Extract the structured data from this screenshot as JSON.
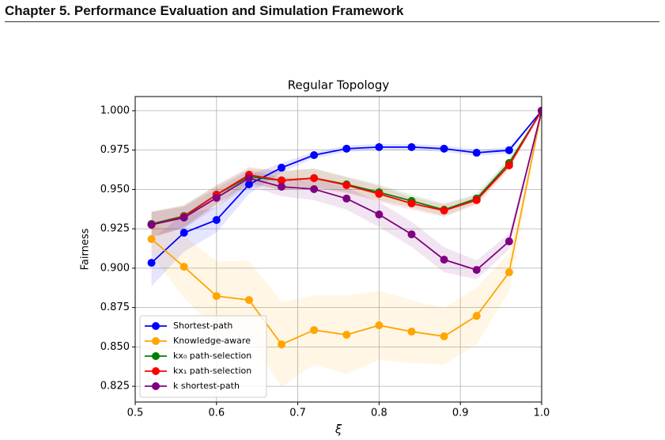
{
  "header": {
    "title": "Chapter 5.  Performance Evaluation and Simulation Framework"
  },
  "chart_data": {
    "type": "line",
    "title": "Regular Topology",
    "x_label": "ξ",
    "y_label": "Fairness",
    "x": [
      0.52,
      0.56,
      0.6,
      0.64,
      0.68,
      0.72,
      0.76,
      0.8,
      0.84,
      0.88,
      0.92,
      0.96,
      1.0
    ],
    "xlim": [
      0.5,
      1.0
    ],
    "xticks": [
      0.5,
      0.6,
      0.7,
      0.8,
      0.9,
      {
        "value": 1.0,
        "label": "1.0"
      }
    ],
    "ylim": [
      0.815,
      1.009
    ],
    "yticks": [
      0.825,
      {
        "value": 0.85,
        "label": "0.850"
      },
      0.875,
      {
        "value": 0.9,
        "label": "0.900"
      },
      0.925,
      {
        "value": 0.95,
        "label": "0.950"
      },
      0.975,
      {
        "value": 1.0,
        "label": "1.000"
      }
    ],
    "grid": true,
    "legend": "lower left",
    "series": [
      {
        "name": "Shortest-path",
        "color": "#0000ff",
        "values": [
          0.9034,
          0.9225,
          0.9306,
          0.9532,
          0.9638,
          0.9718,
          0.9759,
          0.9769,
          0.9769,
          0.9759,
          0.9733,
          0.9749,
          1.0
        ],
        "error": [
          0.015,
          0.012,
          0.008,
          0.006,
          0.003,
          0.002,
          0.002,
          0.002,
          0.002,
          0.002,
          0.002,
          0.002,
          0
        ]
      },
      {
        "name": "Knowledge-aware",
        "color": "#ffa500",
        "values": [
          0.9185,
          0.9009,
          0.8823,
          0.8798,
          0.8516,
          0.8607,
          0.8577,
          0.8637,
          0.8597,
          0.8567,
          0.8697,
          0.8974,
          1.0
        ],
        "error": [
          0.01,
          0.02,
          0.022,
          0.025,
          0.027,
          0.022,
          0.025,
          0.022,
          0.02,
          0.018,
          0.018,
          0.012,
          0
        ]
      },
      {
        "name": "kx₀ path-selection",
        "color": "#008000",
        "values": [
          0.9281,
          0.9331,
          0.9467,
          0.9582,
          0.9557,
          0.9572,
          0.9532,
          0.9482,
          0.9427,
          0.9371,
          0.9442,
          0.9668,
          1.0
        ],
        "error": [
          0.008,
          0.007,
          0.006,
          0.005,
          0.006,
          0.006,
          0.005,
          0.005,
          0.004,
          0.004,
          0.003,
          0.003,
          0
        ]
      },
      {
        "name": "kx₁ path-selection",
        "color": "#ff0000",
        "values": [
          0.9276,
          0.9326,
          0.9467,
          0.9593,
          0.9557,
          0.9572,
          0.9527,
          0.9472,
          0.9411,
          0.9366,
          0.9432,
          0.9653,
          1.0
        ],
        "error": [
          0.008,
          0.007,
          0.006,
          0.005,
          0.006,
          0.006,
          0.005,
          0.005,
          0.004,
          0.004,
          0.003,
          0.003,
          0
        ]
      },
      {
        "name": "k shortest-path",
        "color": "#800080",
        "values": [
          0.9276,
          0.9321,
          0.9447,
          0.9572,
          0.9517,
          0.9502,
          0.9442,
          0.9341,
          0.9215,
          0.9054,
          0.8989,
          0.917,
          1.0
        ],
        "error": [
          0.008,
          0.007,
          0.006,
          0.005,
          0.006,
          0.007,
          0.007,
          0.008,
          0.008,
          0.008,
          0.006,
          0.005,
          0
        ]
      }
    ]
  }
}
